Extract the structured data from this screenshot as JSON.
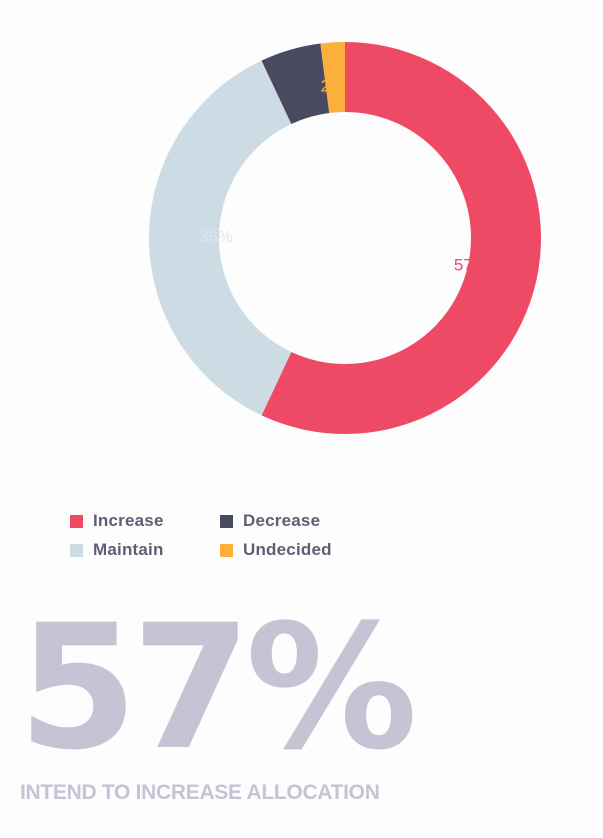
{
  "chart_data": {
    "type": "pie",
    "donut": true,
    "categories": [
      "Increase",
      "Maintain",
      "Decrease",
      "Undecided"
    ],
    "values": [
      57,
      36,
      5,
      2
    ],
    "value_labels": [
      "57%",
      "36%",
      "5%",
      "2%"
    ],
    "colors": [
      "#ee4a66",
      "#cddce4",
      "#484a60",
      "#fbb03b"
    ],
    "label_colors": [
      "#ee4a66",
      "#dce6ec",
      "#484a60",
      "#fbb03b"
    ],
    "legend_position": "bottom-left"
  },
  "legend": {
    "items": [
      {
        "label": "Increase",
        "color": "#ee4a66"
      },
      {
        "label": "Decrease",
        "color": "#484a60"
      },
      {
        "label": "Maintain",
        "color": "#cddce4"
      },
      {
        "label": "Undecided",
        "color": "#fbb03b"
      }
    ]
  },
  "stat": {
    "value": "57%",
    "caption": "INTEND TO INCREASE ALLOCATION"
  }
}
